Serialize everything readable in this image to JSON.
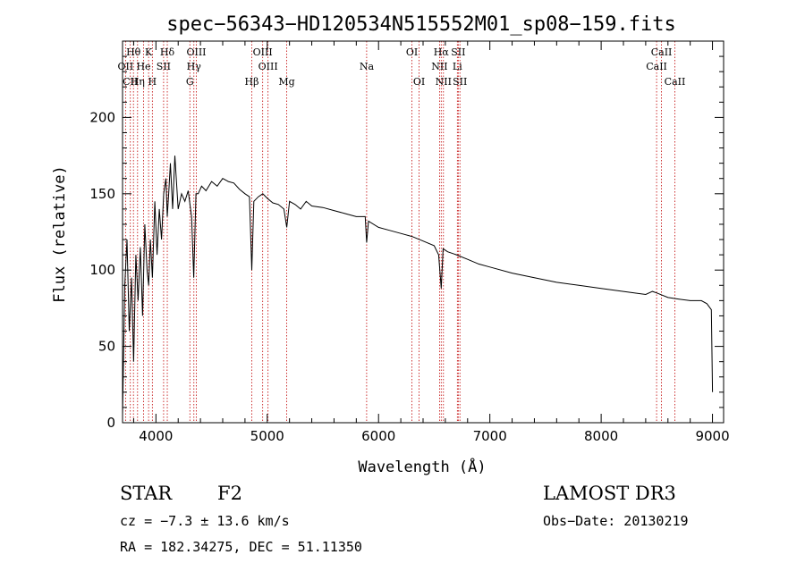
{
  "chart_data": {
    "type": "line",
    "title": "spec−56343−HD120534N515552M01_sp08−159.fits",
    "xlabel": "Wavelength (Å)",
    "ylabel": "Flux (relative)",
    "xlim": [
      3700,
      9100
    ],
    "ylim": [
      0,
      250
    ],
    "xticks": [
      4000,
      5000,
      6000,
      7000,
      8000,
      9000
    ],
    "yticks": [
      0,
      50,
      100,
      150,
      200
    ],
    "series": [
      {
        "name": "spectrum",
        "x": [
          3700,
          3720,
          3740,
          3760,
          3780,
          3800,
          3820,
          3840,
          3860,
          3880,
          3900,
          3920,
          3935,
          3950,
          3968,
          3990,
          4010,
          4030,
          4050,
          4070,
          4090,
          4102,
          4115,
          4130,
          4150,
          4170,
          4200,
          4230,
          4260,
          4290,
          4320,
          4340,
          4360,
          4380,
          4410,
          4450,
          4500,
          4550,
          4600,
          4650,
          4700,
          4750,
          4800,
          4840,
          4861,
          4880,
          4920,
          4960,
          5000,
          5050,
          5100,
          5150,
          5175,
          5200,
          5250,
          5300,
          5350,
          5400,
          5500,
          5600,
          5700,
          5800,
          5880,
          5893,
          5910,
          6000,
          6100,
          6200,
          6300,
          6400,
          6500,
          6540,
          6563,
          6580,
          6620,
          6700,
          6800,
          6900,
          7000,
          7200,
          7400,
          7600,
          7800,
          8000,
          8200,
          8400,
          8460,
          8500,
          8600,
          8700,
          8800,
          8900,
          8950,
          8990,
          9000
        ],
        "y": [
          5,
          90,
          120,
          60,
          95,
          40,
          110,
          80,
          115,
          70,
          130,
          100,
          90,
          120,
          95,
          145,
          110,
          140,
          120,
          150,
          160,
          135,
          150,
          170,
          140,
          175,
          140,
          150,
          145,
          152,
          135,
          95,
          150,
          150,
          155,
          152,
          158,
          155,
          160,
          158,
          157,
          153,
          150,
          148,
          100,
          145,
          148,
          150,
          147,
          144,
          143,
          140,
          128,
          145,
          143,
          140,
          145,
          142,
          141,
          139,
          137,
          135,
          135,
          118,
          132,
          128,
          126,
          124,
          122,
          119,
          116,
          110,
          88,
          114,
          112,
          110,
          107,
          104,
          102,
          98,
          95,
          92,
          90,
          88,
          86,
          84,
          86,
          85,
          82,
          81,
          80,
          80,
          78,
          74,
          20
        ]
      }
    ],
    "line_markers": [
      {
        "label": "Hθ",
        "x": 3798,
        "row": 1
      },
      {
        "label": "OII",
        "x": 3727,
        "row": 2
      },
      {
        "label": "CII",
        "x": 3770,
        "row": 3
      },
      {
        "label": "He",
        "x": 3889,
        "row": 2
      },
      {
        "label": "Hη",
        "x": 3835,
        "row": 3
      },
      {
        "label": "K",
        "x": 3934,
        "row": 1
      },
      {
        "label": "SII",
        "x": 4069,
        "row": 2
      },
      {
        "label": "H",
        "x": 3968,
        "row": 3
      },
      {
        "label": "Hδ",
        "x": 4102,
        "row": 1
      },
      {
        "label": "OIII",
        "x": 4363,
        "row": 1
      },
      {
        "label": "Hγ",
        "x": 4341,
        "row": 2
      },
      {
        "label": "G",
        "x": 4305,
        "row": 3
      },
      {
        "label": "Hβ",
        "x": 4861,
        "row": 3
      },
      {
        "label": "OIII",
        "x": 4959,
        "row": 1
      },
      {
        "label": "OIII",
        "x": 5007,
        "row": 2
      },
      {
        "label": "Mg",
        "x": 5175,
        "row": 3
      },
      {
        "label": "Na",
        "x": 5893,
        "row": 2
      },
      {
        "label": "OI",
        "x": 6300,
        "row": 1
      },
      {
        "label": "OI",
        "x": 6364,
        "row": 3
      },
      {
        "label": "Hα",
        "x": 6563,
        "row": 1
      },
      {
        "label": "SII",
        "x": 6716,
        "row": 1
      },
      {
        "label": "NII",
        "x": 6548,
        "row": 2
      },
      {
        "label": "Li",
        "x": 6708,
        "row": 2
      },
      {
        "label": "NII",
        "x": 6583,
        "row": 3
      },
      {
        "label": "SII",
        "x": 6731,
        "row": 3
      },
      {
        "label": "CaII",
        "x": 8542,
        "row": 1
      },
      {
        "label": "CaII",
        "x": 8498,
        "row": 2
      },
      {
        "label": "CaII",
        "x": 8662,
        "row": 3
      }
    ]
  },
  "info": {
    "class_label": "STAR",
    "subclass": "F2",
    "survey": "LAMOST DR3",
    "cz": "cz = −7.3 ± 13.6 km/s",
    "obs_date": "Obs−Date: 20130219",
    "coords": "RA = 182.34275, DEC =  51.11350"
  },
  "colors": {
    "line_marker": "#c00000",
    "spectrum": "#000000"
  }
}
